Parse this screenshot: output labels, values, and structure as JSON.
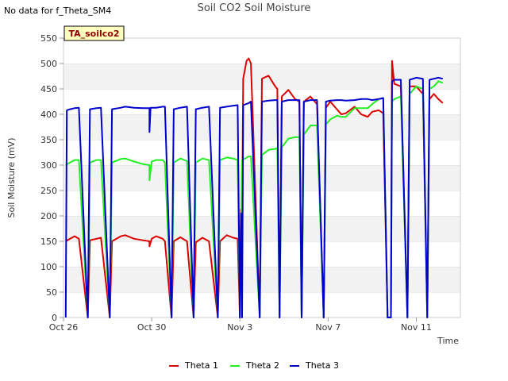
{
  "header": {
    "no_data_note": "No data for f_Theta_SM4",
    "title": "Soil CO2 Soil Moisture"
  },
  "badge": "TA_soilco2",
  "colors": {
    "theta1": "#dd0000",
    "theta2": "#22ee22",
    "theta3": "#0000cc"
  },
  "chart_data": {
    "type": "line",
    "title": "Soil CO2 Soil Moisture",
    "xlabel": "Time",
    "ylabel": "Soil Moisture (mV)",
    "ylim": [
      0,
      550
    ],
    "yticks": [
      0,
      50,
      100,
      150,
      200,
      250,
      300,
      350,
      400,
      450,
      500,
      550
    ],
    "xlim": [
      0,
      18
    ],
    "xticks": [
      {
        "value": 0,
        "label": "Oct 26"
      },
      {
        "value": 4,
        "label": "Oct 30"
      },
      {
        "value": 8,
        "label": "Nov 3"
      },
      {
        "value": 12,
        "label": "Nov 7"
      },
      {
        "value": 16,
        "label": "Nov 11"
      }
    ],
    "x_unit_note": "x values are days after Oct 26",
    "grid": "horizontal bands",
    "legend_position": "bottom",
    "series": [
      {
        "name": "Theta 1",
        "color": "#dd0000",
        "points": [
          [
            0.1,
            150
          ],
          [
            0.3,
            155
          ],
          [
            0.5,
            160
          ],
          [
            0.7,
            155
          ],
          [
            1.1,
            0
          ],
          [
            1.2,
            152
          ],
          [
            1.5,
            155
          ],
          [
            1.7,
            157
          ],
          [
            2.1,
            0
          ],
          [
            2.2,
            150
          ],
          [
            2.6,
            160
          ],
          [
            2.8,
            162
          ],
          [
            3.2,
            155
          ],
          [
            3.6,
            152
          ],
          [
            3.9,
            150
          ],
          [
            3.9,
            140
          ],
          [
            4.0,
            155
          ],
          [
            4.2,
            160
          ],
          [
            4.5,
            155
          ],
          [
            4.6,
            150
          ],
          [
            4.9,
            0
          ],
          [
            5.0,
            150
          ],
          [
            5.3,
            158
          ],
          [
            5.6,
            150
          ],
          [
            5.9,
            0
          ],
          [
            6.0,
            148
          ],
          [
            6.3,
            157
          ],
          [
            6.6,
            150
          ],
          [
            7.0,
            0
          ],
          [
            7.1,
            150
          ],
          [
            7.4,
            162
          ],
          [
            7.7,
            157
          ],
          [
            7.9,
            155
          ],
          [
            8.0,
            0
          ],
          [
            8.05,
            213
          ],
          [
            8.1,
            200
          ],
          [
            8.15,
            470
          ],
          [
            8.3,
            505
          ],
          [
            8.4,
            510
          ],
          [
            8.5,
            500
          ],
          [
            8.9,
            0
          ],
          [
            9.0,
            470
          ],
          [
            9.3,
            476
          ],
          [
            9.6,
            455
          ],
          [
            9.7,
            450
          ],
          [
            9.8,
            0
          ],
          [
            9.9,
            435
          ],
          [
            10.2,
            448
          ],
          [
            10.5,
            430
          ],
          [
            10.7,
            425
          ],
          [
            10.8,
            0
          ],
          [
            10.9,
            425
          ],
          [
            11.2,
            435
          ],
          [
            11.5,
            420
          ],
          [
            11.8,
            0
          ],
          [
            11.9,
            413
          ],
          [
            12.1,
            425
          ],
          [
            12.4,
            410
          ],
          [
            12.6,
            400
          ],
          [
            12.8,
            402
          ],
          [
            13.2,
            415
          ],
          [
            13.5,
            400
          ],
          [
            13.8,
            395
          ],
          [
            14.0,
            405
          ],
          [
            14.3,
            408
          ],
          [
            14.5,
            402
          ],
          [
            14.7,
            0
          ],
          [
            14.85,
            0
          ],
          [
            14.9,
            505
          ],
          [
            15.0,
            460
          ],
          [
            15.3,
            455
          ],
          [
            15.6,
            0
          ],
          [
            15.7,
            455
          ],
          [
            16.0,
            455
          ],
          [
            16.3,
            440
          ],
          [
            16.5,
            0
          ],
          [
            16.6,
            430
          ],
          [
            16.8,
            440
          ],
          [
            17.0,
            430
          ],
          [
            17.2,
            422
          ]
        ]
      },
      {
        "name": "Theta 2",
        "color": "#22ee22",
        "points": [
          [
            0.1,
            300
          ],
          [
            0.3,
            305
          ],
          [
            0.5,
            310
          ],
          [
            0.7,
            310
          ],
          [
            1.1,
            0
          ],
          [
            1.2,
            305
          ],
          [
            1.5,
            310
          ],
          [
            1.7,
            310
          ],
          [
            2.1,
            0
          ],
          [
            2.2,
            305
          ],
          [
            2.6,
            312
          ],
          [
            2.8,
            313
          ],
          [
            3.2,
            307
          ],
          [
            3.6,
            302
          ],
          [
            3.9,
            300
          ],
          [
            3.9,
            270
          ],
          [
            4.0,
            307
          ],
          [
            4.2,
            310
          ],
          [
            4.5,
            310
          ],
          [
            4.6,
            305
          ],
          [
            4.9,
            0
          ],
          [
            5.0,
            305
          ],
          [
            5.3,
            313
          ],
          [
            5.6,
            308
          ],
          [
            5.9,
            0
          ],
          [
            6.0,
            305
          ],
          [
            6.3,
            313
          ],
          [
            6.6,
            310
          ],
          [
            7.0,
            0
          ],
          [
            7.1,
            310
          ],
          [
            7.4,
            315
          ],
          [
            7.7,
            313
          ],
          [
            7.9,
            310
          ],
          [
            8.0,
            0
          ],
          [
            8.1,
            310
          ],
          [
            8.4,
            317
          ],
          [
            8.5,
            317
          ],
          [
            8.9,
            0
          ],
          [
            9.0,
            320
          ],
          [
            9.3,
            330
          ],
          [
            9.6,
            332
          ],
          [
            9.7,
            333
          ],
          [
            9.8,
            0
          ],
          [
            9.9,
            335
          ],
          [
            10.2,
            352
          ],
          [
            10.5,
            355
          ],
          [
            10.7,
            355
          ],
          [
            10.8,
            0
          ],
          [
            10.9,
            360
          ],
          [
            11.2,
            378
          ],
          [
            11.5,
            378
          ],
          [
            11.8,
            0
          ],
          [
            11.9,
            380
          ],
          [
            12.1,
            390
          ],
          [
            12.4,
            397
          ],
          [
            12.6,
            395
          ],
          [
            12.8,
            395
          ],
          [
            13.2,
            412
          ],
          [
            13.5,
            412
          ],
          [
            13.8,
            412
          ],
          [
            14.0,
            420
          ],
          [
            14.3,
            430
          ],
          [
            14.5,
            432
          ],
          [
            14.7,
            0
          ],
          [
            14.85,
            0
          ],
          [
            14.9,
            425
          ],
          [
            15.0,
            430
          ],
          [
            15.3,
            435
          ],
          [
            15.6,
            0
          ],
          [
            15.7,
            440
          ],
          [
            16.0,
            455
          ],
          [
            16.3,
            450
          ],
          [
            16.5,
            0
          ],
          [
            16.6,
            450
          ],
          [
            16.8,
            455
          ],
          [
            17.0,
            465
          ],
          [
            17.2,
            462
          ]
        ]
      },
      {
        "name": "Theta 3",
        "color": "#0000cc",
        "points": [
          [
            0.1,
            0
          ],
          [
            0.15,
            408
          ],
          [
            0.3,
            410
          ],
          [
            0.5,
            412
          ],
          [
            0.7,
            413
          ],
          [
            1.1,
            0
          ],
          [
            1.2,
            410
          ],
          [
            1.5,
            412
          ],
          [
            1.7,
            413
          ],
          [
            2.1,
            0
          ],
          [
            2.2,
            410
          ],
          [
            2.6,
            413
          ],
          [
            2.8,
            415
          ],
          [
            3.2,
            413
          ],
          [
            3.6,
            412
          ],
          [
            3.9,
            412
          ],
          [
            3.9,
            365
          ],
          [
            3.95,
            413
          ],
          [
            4.2,
            413
          ],
          [
            4.5,
            415
          ],
          [
            4.6,
            415
          ],
          [
            4.9,
            0
          ],
          [
            5.0,
            410
          ],
          [
            5.3,
            413
          ],
          [
            5.6,
            415
          ],
          [
            5.9,
            0
          ],
          [
            6.0,
            410
          ],
          [
            6.3,
            413
          ],
          [
            6.6,
            415
          ],
          [
            7.0,
            0
          ],
          [
            7.1,
            413
          ],
          [
            7.4,
            415
          ],
          [
            7.7,
            417
          ],
          [
            7.9,
            418
          ],
          [
            8.0,
            0
          ],
          [
            8.05,
            205
          ],
          [
            8.1,
            0
          ],
          [
            8.15,
            418
          ],
          [
            8.4,
            422
          ],
          [
            8.5,
            425
          ],
          [
            8.9,
            0
          ],
          [
            9.0,
            425
          ],
          [
            9.3,
            427
          ],
          [
            9.6,
            428
          ],
          [
            9.7,
            428
          ],
          [
            9.8,
            0
          ],
          [
            9.9,
            425
          ],
          [
            10.2,
            428
          ],
          [
            10.5,
            428
          ],
          [
            10.7,
            428
          ],
          [
            10.8,
            0
          ],
          [
            10.9,
            425
          ],
          [
            11.2,
            428
          ],
          [
            11.5,
            428
          ],
          [
            11.8,
            0
          ],
          [
            11.9,
            425
          ],
          [
            12.1,
            427
          ],
          [
            12.4,
            428
          ],
          [
            12.6,
            428
          ],
          [
            12.8,
            427
          ],
          [
            13.2,
            428
          ],
          [
            13.5,
            430
          ],
          [
            13.8,
            430
          ],
          [
            14.0,
            428
          ],
          [
            14.3,
            430
          ],
          [
            14.5,
            432
          ],
          [
            14.7,
            0
          ],
          [
            14.85,
            0
          ],
          [
            14.9,
            465
          ],
          [
            15.0,
            468
          ],
          [
            15.3,
            468
          ],
          [
            15.6,
            0
          ],
          [
            15.7,
            468
          ],
          [
            16.0,
            472
          ],
          [
            16.3,
            470
          ],
          [
            16.5,
            0
          ],
          [
            16.6,
            468
          ],
          [
            16.8,
            470
          ],
          [
            17.0,
            472
          ],
          [
            17.2,
            470
          ]
        ]
      }
    ]
  }
}
